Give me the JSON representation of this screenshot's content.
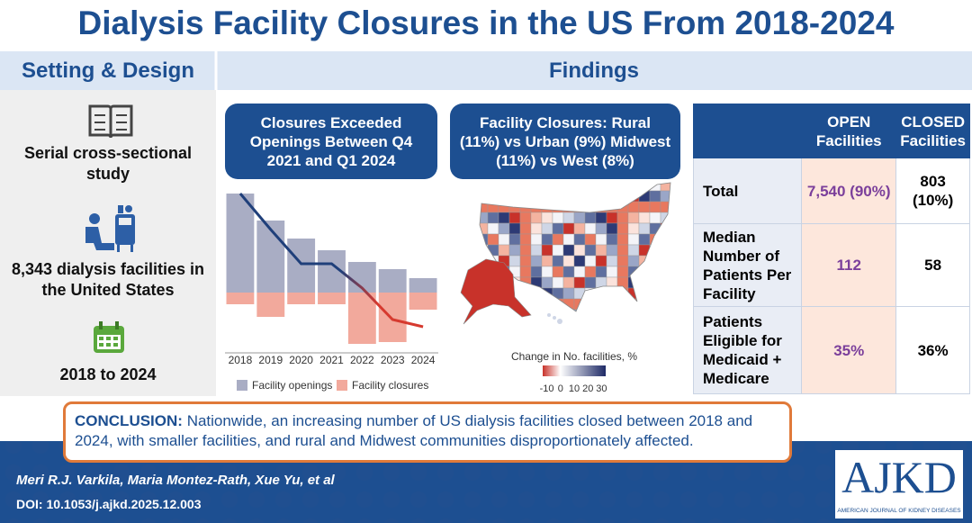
{
  "header": {
    "title": "Dialysis Facility Closures in the US From 2018-2024"
  },
  "setting_design": {
    "heading": "Setting & Design",
    "items": [
      "Serial cross-sectional study",
      "8,343 dialysis facilities in the United States",
      "2018 to 2024"
    ]
  },
  "findings": {
    "heading": "Findings"
  },
  "chart_data": {
    "type": "bar",
    "title": "Closures Exceeded Openings Between Q4 2021 and Q1 2024",
    "categories": [
      "2018",
      "2019",
      "2020",
      "2021",
      "2022",
      "2023",
      "2024"
    ],
    "series": [
      {
        "name": "Facility openings",
        "color": "#a9adc4",
        "values": [
          110,
          80,
          60,
          47,
          34,
          26,
          16
        ]
      },
      {
        "name": "Facility closures",
        "color": "#f2a99c",
        "values": [
          -13,
          -27,
          -13,
          -13,
          -57,
          -55,
          -19
        ]
      }
    ],
    "line": {
      "color": "#1f3f7a",
      "end_color": "#d63a2f",
      "values": [
        110,
        70,
        32,
        32,
        5,
        -30,
        -38
      ]
    },
    "ylim": [
      -65,
      115
    ]
  },
  "map": {
    "title": "Facility Closures: Rural (11%) vs Urban (9%) Midwest (11%) vs West (8%)",
    "legend_title": "Change in No. facilities, %",
    "legend_ticks": [
      -10,
      0,
      10,
      20,
      30
    ],
    "legend_lim": [
      -13,
      33
    ]
  },
  "table": {
    "header": [
      "OPEN Facilities",
      "CLOSED Facilities"
    ],
    "rows": [
      [
        "Total",
        "7,540 (90%)",
        "803 (10%)"
      ],
      [
        "Median Number of Patients Per Facility",
        "112",
        "58"
      ],
      [
        "Patients Eligible for Medicaid + Medicare",
        "35%",
        "36%"
      ]
    ]
  },
  "conclusion": {
    "label": "CONCLUSION:",
    "text": "Nationwide, an increasing number of US dialysis facilities closed between 2018 and 2024, with smaller facilities, and rural and Midwest communities disproportionately affected."
  },
  "footer": {
    "authors": "Meri R.J. Varkila, Maria Montez-Rath, Xue Yu, et al",
    "doi": "DOI: 10.1053/j.ajkd.2025.12.003",
    "logo": "AJKD",
    "logo_subtitle": "AMERICAN JOURNAL OF KIDNEY DISEASES"
  }
}
